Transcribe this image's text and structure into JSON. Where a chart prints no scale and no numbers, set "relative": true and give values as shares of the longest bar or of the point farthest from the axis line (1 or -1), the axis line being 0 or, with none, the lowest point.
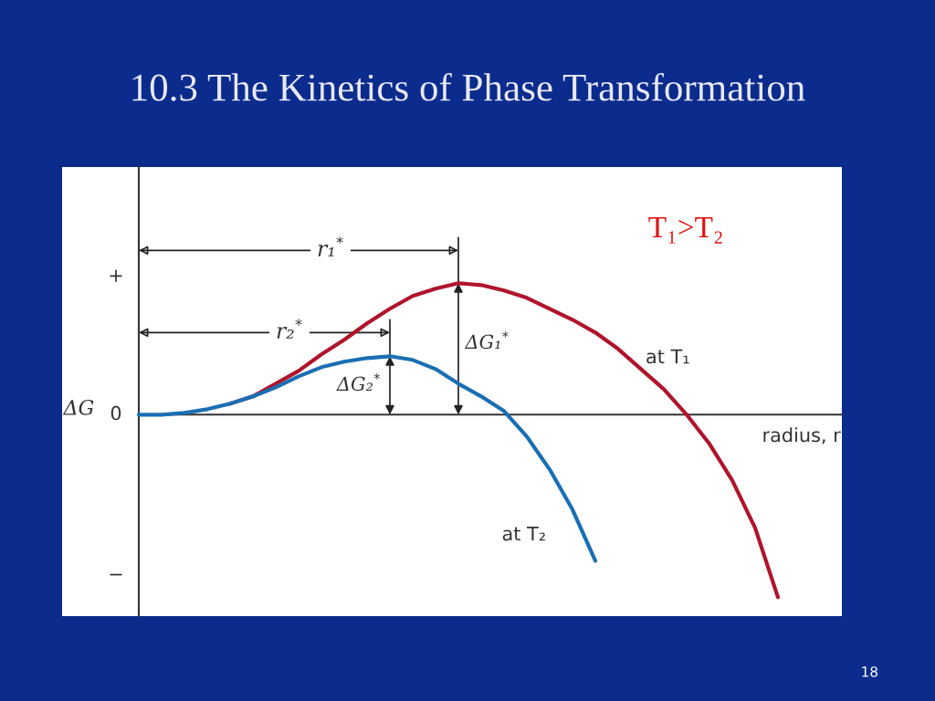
{
  "chart_data": {
    "type": "line",
    "relative": true,
    "title": "10.3 The Kinetics of Phase Transformation",
    "xlabel": "radius, r",
    "ylabel": "ΔG",
    "categories": [
      null,
      null,
      null,
      null,
      null,
      null,
      null,
      null,
      null,
      null,
      null,
      null,
      null,
      null,
      null,
      null,
      null,
      null,
      null,
      null,
      null,
      null,
      null,
      null,
      null,
      null,
      null,
      null,
      null
    ],
    "series": [
      {
        "name": "at T₁",
        "color": "#b0142c",
        "values": [
          null,
          null,
          null,
          null,
          0.06,
          0.1,
          0.17,
          0.24,
          0.33,
          0.41,
          0.5,
          0.58,
          0.65,
          0.69,
          0.72,
          0.71,
          0.68,
          0.64,
          0.58,
          0.52,
          0.45,
          0.36,
          0.25,
          0.14,
          0,
          -0.16,
          -0.36,
          -0.62,
          -1.0
        ]
      },
      {
        "name": "at T₂",
        "color": "#1a6fb3",
        "values": [
          0,
          0,
          0.01,
          0.03,
          0.06,
          0.1,
          0.15,
          0.21,
          0.26,
          0.29,
          0.31,
          0.32,
          0.3,
          0.25,
          0.17,
          0.1,
          0.02,
          -0.12,
          -0.3,
          -0.52,
          -0.8,
          null,
          null,
          null,
          null,
          null,
          null,
          null,
          null
        ]
      }
    ],
    "annotations": [
      "+",
      "0",
      "−",
      "r₁$^{*}$",
      "r₂$^{*}$",
      "ΔG₁$^{*}$",
      "ΔG₂$^{*}$",
      "T₁>T₂",
      "18"
    ],
    "legend": false
  }
}
